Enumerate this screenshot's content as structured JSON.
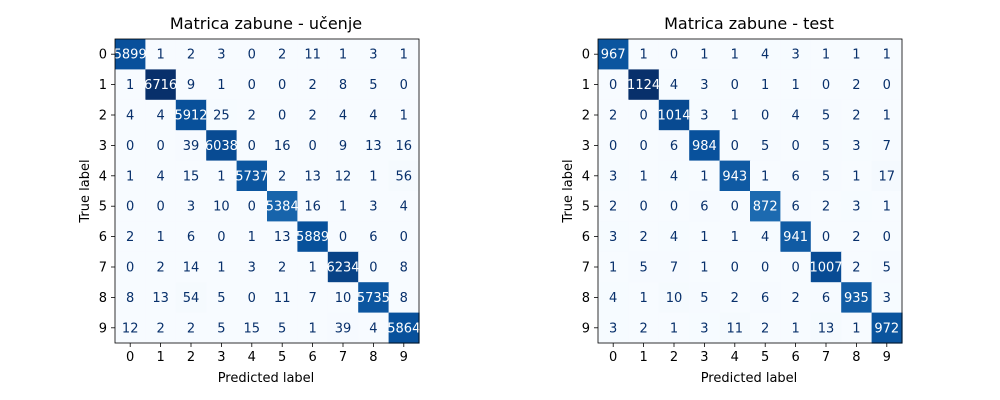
{
  "chart_data": [
    {
      "type": "heatmap",
      "title": "Matrica zabune - učenje",
      "xlabel": "Predicted label",
      "ylabel": "True label",
      "x_tick_labels": [
        "0",
        "1",
        "2",
        "3",
        "4",
        "5",
        "6",
        "7",
        "8",
        "9"
      ],
      "y_tick_labels": [
        "0",
        "1",
        "2",
        "3",
        "4",
        "5",
        "6",
        "7",
        "8",
        "9"
      ],
      "colormap": "Blues",
      "values": [
        [
          5899,
          1,
          2,
          3,
          0,
          2,
          11,
          1,
          3,
          1
        ],
        [
          1,
          6716,
          9,
          1,
          0,
          0,
          2,
          8,
          5,
          0
        ],
        [
          4,
          4,
          5912,
          25,
          2,
          0,
          2,
          4,
          4,
          1
        ],
        [
          0,
          0,
          39,
          6038,
          0,
          16,
          0,
          9,
          13,
          16
        ],
        [
          1,
          4,
          15,
          1,
          5737,
          2,
          13,
          12,
          1,
          56
        ],
        [
          0,
          0,
          3,
          10,
          0,
          5384,
          16,
          1,
          3,
          4
        ],
        [
          2,
          1,
          6,
          0,
          1,
          13,
          5889,
          0,
          6,
          0
        ],
        [
          0,
          2,
          14,
          1,
          3,
          2,
          1,
          6234,
          0,
          8
        ],
        [
          8,
          13,
          54,
          5,
          0,
          11,
          7,
          10,
          5735,
          8
        ],
        [
          12,
          2,
          2,
          5,
          15,
          5,
          1,
          39,
          4,
          5864
        ]
      ]
    },
    {
      "type": "heatmap",
      "title": "Matrica zabune - test",
      "xlabel": "Predicted label",
      "ylabel": "True label",
      "x_tick_labels": [
        "0",
        "1",
        "2",
        "3",
        "4",
        "5",
        "6",
        "7",
        "8",
        "9"
      ],
      "y_tick_labels": [
        "0",
        "1",
        "2",
        "3",
        "4",
        "5",
        "6",
        "7",
        "8",
        "9"
      ],
      "colormap": "Blues",
      "values": [
        [
          967,
          1,
          0,
          1,
          1,
          4,
          3,
          1,
          1,
          1
        ],
        [
          0,
          1124,
          4,
          3,
          0,
          1,
          1,
          0,
          2,
          0
        ],
        [
          2,
          0,
          1014,
          3,
          1,
          0,
          4,
          5,
          2,
          1
        ],
        [
          0,
          0,
          6,
          984,
          0,
          5,
          0,
          5,
          3,
          7
        ],
        [
          3,
          1,
          4,
          1,
          943,
          1,
          6,
          5,
          1,
          17
        ],
        [
          2,
          0,
          0,
          6,
          0,
          872,
          6,
          2,
          3,
          1
        ],
        [
          3,
          2,
          4,
          1,
          1,
          4,
          941,
          0,
          2,
          0
        ],
        [
          1,
          5,
          7,
          1,
          0,
          0,
          0,
          1007,
          2,
          5
        ],
        [
          4,
          1,
          10,
          5,
          2,
          6,
          2,
          6,
          935,
          3
        ],
        [
          3,
          2,
          1,
          3,
          11,
          2,
          1,
          13,
          1,
          972
        ]
      ]
    }
  ]
}
